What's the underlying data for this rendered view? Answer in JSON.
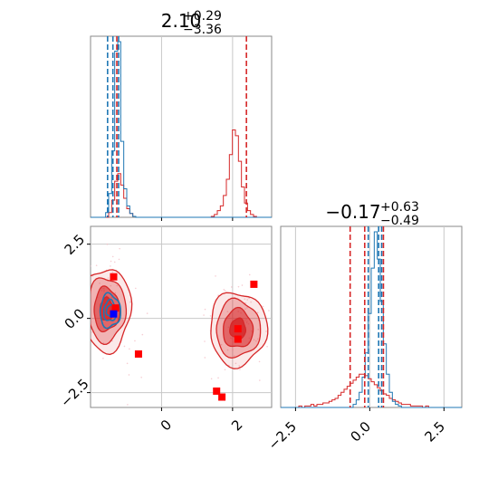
{
  "colors": {
    "red": "#d62728",
    "blue": "#1f77b4",
    "marker_red": "#ff0000",
    "marker_blue": "#0000ff",
    "grid": "#c8c8c8"
  },
  "chart_data": {
    "type": "corner",
    "param0": {
      "title": {
        "base": "2.10",
        "upper": "+0.29",
        "lower": "−3.36"
      },
      "range": [
        -2.0,
        3.1
      ],
      "ticks": [
        0,
        2
      ],
      "tick_labels": [
        "0",
        "2"
      ],
      "quantiles_red": [
        -1.26,
        2.39
      ],
      "quantiles_blue": [
        -1.52,
        -1.37,
        -1.21
      ],
      "hist_bins": 60,
      "hist_red": [
        0,
        0,
        0,
        0,
        0,
        0,
        5,
        18,
        38,
        46,
        34,
        20,
        9,
        4,
        1,
        0,
        0,
        0,
        0,
        0,
        0,
        0,
        0,
        0,
        0,
        0,
        0,
        0,
        0,
        0,
        0,
        0,
        0,
        0,
        0,
        0,
        0,
        0,
        0,
        0,
        1,
        3,
        7,
        12,
        23,
        40,
        66,
        92,
        86,
        59,
        32,
        15,
        7,
        3,
        1,
        0,
        0,
        0,
        0,
        0
      ],
      "hist_blue": [
        0,
        0,
        0,
        0,
        0,
        5,
        25,
        70,
        175,
        185,
        80,
        30,
        12,
        4,
        1,
        0,
        0,
        0,
        0,
        0,
        0,
        0,
        0,
        0,
        0,
        0,
        0,
        0,
        0,
        0,
        0,
        0,
        0,
        0,
        0,
        0,
        0,
        0,
        0,
        0,
        0,
        0,
        0,
        0,
        0,
        0,
        0,
        0,
        0,
        0,
        0,
        0,
        0,
        0,
        0,
        0,
        0,
        0,
        0,
        0
      ]
    },
    "param1": {
      "title": {
        "base": "−0.17",
        "upper": "+0.63",
        "lower": "−0.49"
      },
      "range": [
        -3.0,
        3.1
      ],
      "ticks": [
        -2.5,
        0.0,
        2.5
      ],
      "tick_labels": [
        "−2.5",
        "0.0",
        "2.5"
      ],
      "quantiles_red": [
        -0.66,
        -0.17,
        0.46
      ],
      "quantiles_blue": [
        -0.05,
        0.3,
        0.4
      ],
      "hist_bins": 60,
      "hist_red": [
        0,
        0,
        0,
        0,
        0,
        0,
        1,
        0,
        1,
        1,
        2,
        1,
        2,
        2,
        3,
        3,
        4,
        5,
        6,
        8,
        10,
        12,
        14,
        16,
        18,
        20,
        22,
        22,
        21,
        19,
        17,
        15,
        13,
        11,
        9,
        8,
        6,
        5,
        4,
        3,
        2,
        2,
        2,
        1,
        1,
        1,
        1,
        0,
        1,
        0,
        0,
        0,
        0,
        0,
        0,
        0,
        0,
        0,
        0,
        0
      ],
      "hist_blue": [
        0,
        0,
        0,
        0,
        0,
        0,
        0,
        0,
        0,
        0,
        0,
        0,
        0,
        0,
        0,
        0,
        0,
        0,
        0,
        0,
        0,
        0,
        0,
        0,
        2,
        5,
        10,
        20,
        36,
        62,
        92,
        116,
        98,
        70,
        42,
        22,
        10,
        4,
        2,
        1,
        0,
        0,
        0,
        0,
        0,
        0,
        0,
        0,
        0,
        0,
        0,
        0,
        0,
        0,
        0,
        0,
        0,
        0,
        0,
        0
      ]
    },
    "scatter": {
      "x_ticks": [
        0,
        2
      ],
      "y_ticks": [
        -2.5,
        0.0,
        2.5
      ],
      "y_tick_labels": [
        "−2.5",
        "0.0",
        "2.5"
      ],
      "red_markers": [
        {
          "x": -1.35,
          "y": 1.4
        },
        {
          "x": -1.3,
          "y": 0.35
        },
        {
          "x": -0.65,
          "y": -1.2
        },
        {
          "x": 2.6,
          "y": 1.15
        },
        {
          "x": 2.15,
          "y": -0.35
        },
        {
          "x": 2.15,
          "y": -0.7
        },
        {
          "x": 1.55,
          "y": -2.45
        },
        {
          "x": 1.7,
          "y": -2.65
        }
      ],
      "blue_markers": [
        {
          "x": -1.35,
          "y": 0.15
        }
      ],
      "modes": [
        {
          "cx": -1.55,
          "cy": 0.3,
          "sx": 0.34,
          "sy": 0.7,
          "color": "red"
        },
        {
          "cx": 2.15,
          "cy": -0.35,
          "sx": 0.4,
          "sy": 0.62,
          "color": "red"
        },
        {
          "cx": -1.45,
          "cy": 0.25,
          "sx": 0.18,
          "sy": 0.35,
          "color": "blue"
        }
      ]
    }
  }
}
